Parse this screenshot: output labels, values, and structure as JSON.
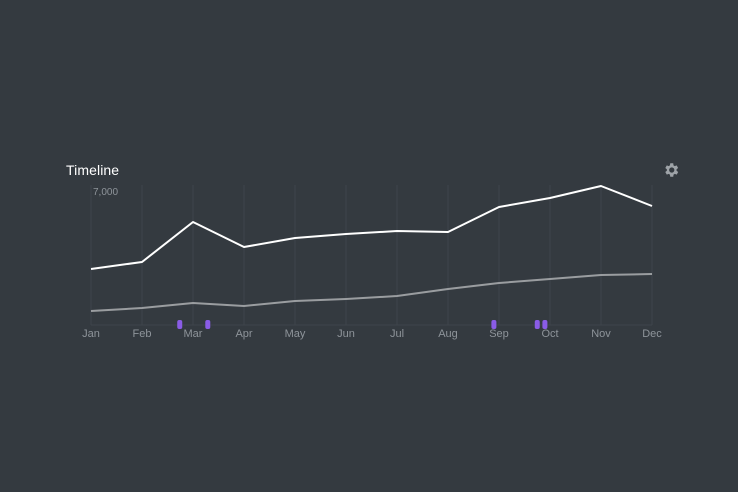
{
  "widget": {
    "title": "Timeline",
    "settings_icon": "gear-icon"
  },
  "colors": {
    "background": "#343a40",
    "primary_series": "#ffffff",
    "secondary_series": "#9a9da0",
    "grid": "#3e444b",
    "tick_label": "#8e949a",
    "event_marker": "#8a5ce6"
  },
  "chart_data": {
    "type": "line",
    "title": "Timeline",
    "xlabel": "",
    "ylabel": "",
    "categories": [
      "Jan",
      "Feb",
      "Mar",
      "Apr",
      "May",
      "Jun",
      "Jul",
      "Aug",
      "Sep",
      "Oct",
      "Nov",
      "Dec"
    ],
    "ylim": [
      0,
      7000
    ],
    "y_tick_labels": [
      "7,000"
    ],
    "grid": true,
    "legend": "none",
    "series": [
      {
        "values": [
          2800,
          3150,
          5150,
          3900,
          4350,
          4550,
          4700,
          4650,
          5900,
          6350,
          6950,
          5950
        ]
      },
      {
        "values": [
          700,
          850,
          1100,
          950,
          1200,
          1300,
          1450,
          1800,
          2100,
          2300,
          2500,
          2550
        ]
      }
    ],
    "event_markers": [
      1.74,
      2.29,
      7.9,
      8.75,
      8.9
    ]
  }
}
